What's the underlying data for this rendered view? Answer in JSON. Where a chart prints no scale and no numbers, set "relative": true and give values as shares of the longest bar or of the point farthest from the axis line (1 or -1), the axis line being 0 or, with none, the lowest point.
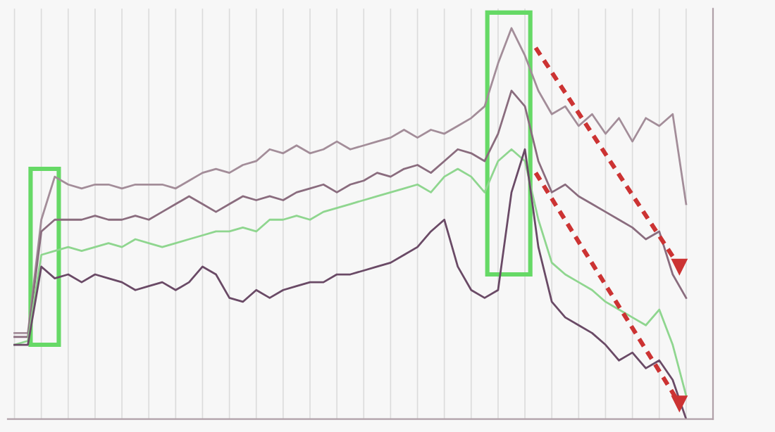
{
  "chart_data": {
    "type": "line",
    "relative": true,
    "grid": "x",
    "legend": false,
    "categories": [
      null,
      null,
      null,
      null,
      null,
      null,
      null,
      null,
      null,
      null,
      null,
      null,
      null,
      null,
      null,
      null,
      null,
      null,
      null,
      null,
      null,
      null,
      null,
      null,
      null,
      null,
      null,
      null,
      null,
      null,
      null,
      null,
      null,
      null,
      null,
      null,
      null,
      null,
      null,
      null,
      null,
      null,
      null,
      null,
      null,
      null,
      null,
      null,
      null,
      null,
      null
    ],
    "series": [
      {
        "color": "#a38d99",
        "values": [
          0.22,
          0.22,
          0.51,
          0.62,
          0.6,
          0.59,
          0.6,
          0.6,
          0.59,
          0.6,
          0.6,
          0.6,
          0.59,
          0.61,
          0.63,
          0.64,
          0.63,
          0.65,
          0.66,
          0.69,
          0.68,
          0.7,
          0.68,
          0.69,
          0.71,
          0.69,
          0.7,
          0.71,
          0.72,
          0.74,
          0.72,
          0.74,
          0.73,
          0.75,
          0.77,
          0.8,
          0.91,
          1,
          0.93,
          0.84,
          0.78,
          0.8,
          0.75,
          0.78,
          0.73,
          0.77,
          0.71,
          0.77,
          0.75,
          0.78,
          0.55
        ]
      },
      {
        "color": "#8a6c7e",
        "values": [
          0.21,
          0.21,
          0.48,
          0.51,
          0.51,
          0.51,
          0.52,
          0.51,
          0.51,
          0.52,
          0.51,
          0.53,
          0.55,
          0.57,
          0.55,
          0.53,
          0.55,
          0.57,
          0.56,
          0.57,
          0.56,
          0.58,
          0.59,
          0.6,
          0.58,
          0.6,
          0.61,
          0.63,
          0.62,
          0.64,
          0.65,
          0.63,
          0.66,
          0.69,
          0.68,
          0.66,
          0.73,
          0.84,
          0.8,
          0.66,
          0.58,
          0.6,
          0.57,
          0.55,
          0.53,
          0.51,
          0.49,
          0.46,
          0.48,
          0.37,
          0.31
        ]
      },
      {
        "color": "#8fd68f",
        "values": [
          0.19,
          0.2,
          0.42,
          0.43,
          0.44,
          0.43,
          0.44,
          0.45,
          0.44,
          0.46,
          0.45,
          0.44,
          0.45,
          0.46,
          0.47,
          0.48,
          0.48,
          0.49,
          0.48,
          0.51,
          0.51,
          0.52,
          0.51,
          0.53,
          0.54,
          0.55,
          0.56,
          0.57,
          0.58,
          0.59,
          0.6,
          0.58,
          0.62,
          0.64,
          0.62,
          0.58,
          0.66,
          0.69,
          0.66,
          0.51,
          0.4,
          0.37,
          0.35,
          0.33,
          0.3,
          0.28,
          0.26,
          0.24,
          0.28,
          0.19,
          0.06
        ]
      },
      {
        "color": "#6a4a66",
        "values": [
          0.19,
          0.19,
          0.39,
          0.36,
          0.37,
          0.35,
          0.37,
          0.36,
          0.35,
          0.33,
          0.34,
          0.35,
          0.33,
          0.35,
          0.39,
          0.37,
          0.31,
          0.3,
          0.33,
          0.31,
          0.33,
          0.34,
          0.35,
          0.35,
          0.37,
          0.37,
          0.38,
          0.39,
          0.4,
          0.42,
          0.44,
          0.48,
          0.51,
          0.39,
          0.33,
          0.31,
          0.33,
          0.58,
          0.69,
          0.44,
          0.3,
          0.26,
          0.24,
          0.22,
          0.19,
          0.15,
          0.17,
          0.13,
          0.15,
          0.1,
          0
        ]
      }
    ]
  }
}
